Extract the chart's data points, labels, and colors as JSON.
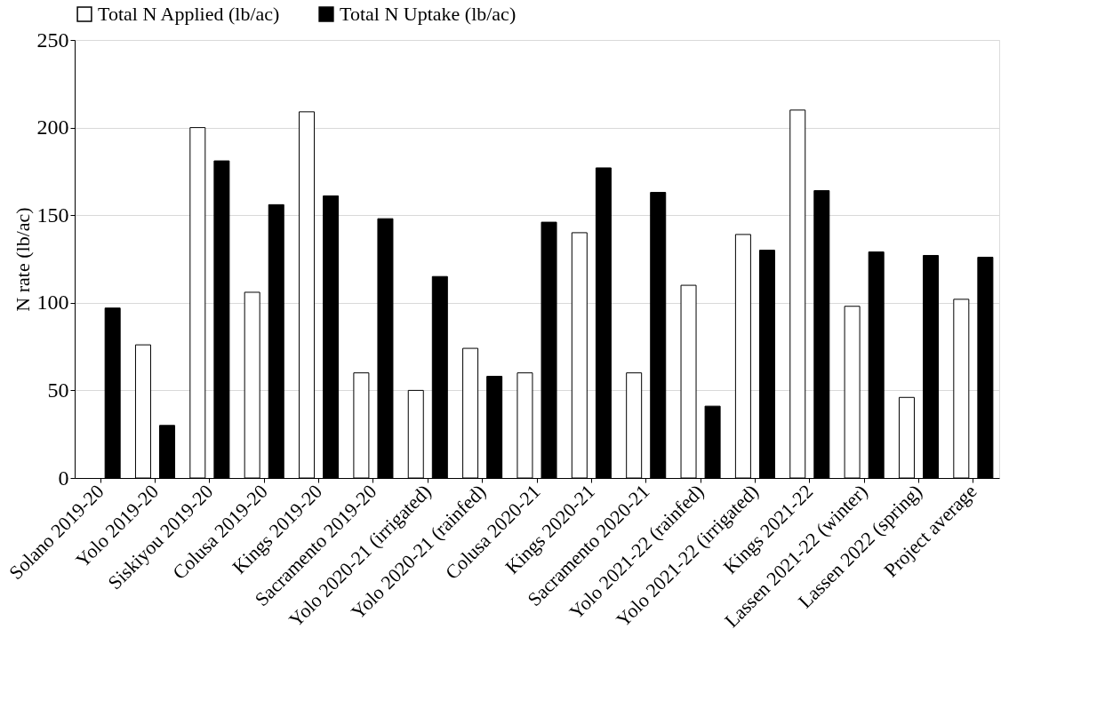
{
  "chart_data": {
    "type": "bar",
    "categories": [
      "Solano 2019-20",
      "Yolo 2019-20",
      "Siskiyou 2019-20",
      "Colusa 2019-20",
      "Kings 2019-20",
      "Sacramento 2019-20",
      "Yolo 2020-21 (irrigated)",
      "Yolo 2020-21 (rainfed)",
      "Colusa 2020-21",
      "Kings 2020-21",
      "Sacramento 2020-21",
      "Yolo 2021-22 (rainfed)",
      "Yolo 2021-22 (irrigated)",
      "Kings 2021-22",
      "Lassen 2021-22 (winter)",
      "Lassen 2022 (spring)",
      "Project average"
    ],
    "series": [
      {
        "name": "Total N Applied (lb/ac)",
        "color": "#ffffff",
        "values": [
          null,
          76,
          200,
          106,
          209,
          60,
          50,
          74,
          60,
          140,
          60,
          110,
          139,
          210,
          98,
          46,
          102
        ]
      },
      {
        "name": "Total N Uptake (lb/ac)",
        "color": "#000000",
        "values": [
          97,
          30,
          181,
          156,
          161,
          148,
          115,
          58,
          146,
          177,
          163,
          41,
          130,
          164,
          129,
          127,
          126
        ]
      }
    ],
    "ylabel": "N rate (lb/ac)",
    "ylim": [
      0,
      250
    ],
    "yticks": [
      0,
      50,
      100,
      150,
      200,
      250
    ],
    "grid": "y",
    "legend": "top"
  }
}
